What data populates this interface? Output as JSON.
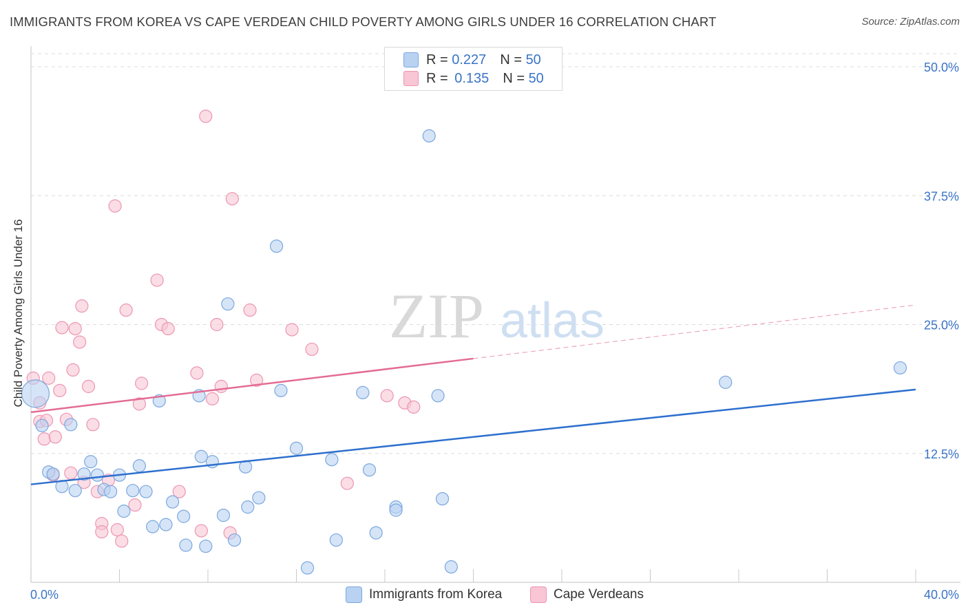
{
  "title": "IMMIGRANTS FROM KOREA VS CAPE VERDEAN CHILD POVERTY AMONG GIRLS UNDER 16 CORRELATION CHART",
  "source": "Source: ZipAtlas.com",
  "watermark": {
    "part1": "ZIP",
    "part2": "atlas"
  },
  "colors": {
    "korea_fill": "#b9d2f2",
    "korea_stroke": "#7aa7de",
    "korea_line": "#2d6fce",
    "cape_fill": "#f8c6d5",
    "cape_stroke": "#ec95b1",
    "cape_line": "#e36b94",
    "tick_label": "#3a74c6",
    "grid": "#dcdcdc"
  },
  "legend_top": {
    "rows": [
      {
        "r_label": "R = ",
        "r_value": "0.227",
        "n_label": "N = ",
        "n_value": "50"
      },
      {
        "r_label": "R = ",
        "r_value": "0.135",
        "n_label": "N = ",
        "n_value": "50"
      }
    ]
  },
  "legend_bottom": {
    "korea": "Immigrants from Korea",
    "cape": "Cape Verdeans"
  },
  "chart_data": {
    "type": "scatter",
    "title": "IMMIGRANTS FROM KOREA VS CAPE VERDEAN CHILD POVERTY AMONG GIRLS UNDER 16 CORRELATION CHART",
    "xlabel": "",
    "ylabel": "Child Poverty Among Girls Under 16",
    "xlim": [
      0,
      40
    ],
    "ylim": [
      0,
      50
    ],
    "x_tick_labels": [
      "0.0%",
      "40.0%"
    ],
    "y_ticks": [
      12.5,
      25.0,
      37.5,
      50.0
    ],
    "y_tick_labels": [
      "12.5%",
      "25.0%",
      "37.5%",
      "50.0%"
    ],
    "grid": "horizontal dashed",
    "legend_placement": "top-center",
    "series": [
      {
        "name": "Immigrants from Korea",
        "color": "#b9d2f2",
        "r": 0.227,
        "n": 50,
        "trend": {
          "x": [
            0,
            40
          ],
          "y": [
            9.5,
            18.7
          ],
          "dashed_from": null
        },
        "points": [
          [
            0.2,
            18.3,
            "large"
          ],
          [
            0.5,
            15.2
          ],
          [
            0.8,
            10.7
          ],
          [
            1.0,
            10.5
          ],
          [
            1.4,
            9.3
          ],
          [
            1.8,
            15.3
          ],
          [
            2.0,
            8.9
          ],
          [
            2.4,
            10.5
          ],
          [
            2.7,
            11.7
          ],
          [
            3.0,
            10.4
          ],
          [
            3.3,
            9.0
          ],
          [
            3.6,
            8.8
          ],
          [
            4.0,
            10.4
          ],
          [
            4.2,
            6.9
          ],
          [
            4.6,
            8.9
          ],
          [
            4.9,
            11.3
          ],
          [
            5.2,
            8.8
          ],
          [
            5.5,
            5.4
          ],
          [
            5.8,
            17.6
          ],
          [
            6.1,
            5.6
          ],
          [
            6.4,
            7.8
          ],
          [
            6.9,
            6.4
          ],
          [
            7.0,
            3.6
          ],
          [
            7.6,
            18.1
          ],
          [
            7.7,
            12.2
          ],
          [
            7.9,
            3.5
          ],
          [
            8.2,
            11.7
          ],
          [
            8.7,
            6.5
          ],
          [
            8.9,
            27.0
          ],
          [
            9.2,
            4.1
          ],
          [
            9.7,
            11.2
          ],
          [
            9.8,
            7.3
          ],
          [
            10.3,
            8.2
          ],
          [
            11.1,
            32.6
          ],
          [
            11.3,
            18.6
          ],
          [
            12.0,
            13.0
          ],
          [
            12.5,
            1.4
          ],
          [
            13.6,
            11.9
          ],
          [
            13.8,
            4.1
          ],
          [
            15.0,
            18.4
          ],
          [
            15.3,
            10.9
          ],
          [
            15.6,
            4.8
          ],
          [
            16.5,
            7.3
          ],
          [
            16.5,
            7.0
          ],
          [
            18.0,
            43.3
          ],
          [
            18.4,
            18.1
          ],
          [
            18.6,
            8.1
          ],
          [
            19.0,
            1.5
          ],
          [
            31.4,
            19.4
          ],
          [
            39.3,
            20.8
          ]
        ]
      },
      {
        "name": "Cape Verdeans",
        "color": "#f8c6d5",
        "r": 0.135,
        "n": 50,
        "trend": {
          "x": [
            0,
            40
          ],
          "y": [
            16.5,
            26.9
          ],
          "dashed_from": 20
        },
        "points": [
          [
            0.1,
            19.8
          ],
          [
            0.4,
            15.6
          ],
          [
            0.4,
            17.4
          ],
          [
            0.6,
            13.9
          ],
          [
            0.7,
            15.7
          ],
          [
            0.8,
            19.8
          ],
          [
            1.0,
            10.4
          ],
          [
            1.1,
            14.1
          ],
          [
            1.3,
            18.6
          ],
          [
            1.4,
            24.7
          ],
          [
            1.6,
            15.8
          ],
          [
            1.8,
            10.6
          ],
          [
            1.9,
            20.6
          ],
          [
            2.0,
            24.6
          ],
          [
            2.2,
            23.3
          ],
          [
            2.3,
            26.8
          ],
          [
            2.4,
            9.7
          ],
          [
            2.6,
            19.0
          ],
          [
            2.8,
            15.3
          ],
          [
            3.0,
            8.8
          ],
          [
            3.2,
            5.7
          ],
          [
            3.2,
            4.9
          ],
          [
            3.5,
            9.9
          ],
          [
            3.8,
            36.5
          ],
          [
            3.9,
            5.1
          ],
          [
            4.1,
            4.0
          ],
          [
            4.3,
            26.4
          ],
          [
            4.7,
            7.5
          ],
          [
            4.9,
            17.3
          ],
          [
            5.0,
            19.3
          ],
          [
            5.7,
            29.3
          ],
          [
            5.9,
            25.0
          ],
          [
            6.2,
            24.6
          ],
          [
            6.7,
            8.8
          ],
          [
            7.5,
            20.3
          ],
          [
            7.7,
            5.0
          ],
          [
            7.9,
            45.2
          ],
          [
            8.2,
            17.8
          ],
          [
            8.4,
            25.0
          ],
          [
            8.6,
            19.0
          ],
          [
            9.0,
            4.8
          ],
          [
            9.1,
            37.2
          ],
          [
            9.9,
            26.4
          ],
          [
            10.2,
            19.6
          ],
          [
            11.8,
            24.5
          ],
          [
            12.7,
            22.6
          ],
          [
            14.3,
            9.6
          ],
          [
            16.1,
            18.1
          ],
          [
            16.9,
            17.4
          ],
          [
            17.3,
            17.0
          ]
        ]
      }
    ]
  }
}
